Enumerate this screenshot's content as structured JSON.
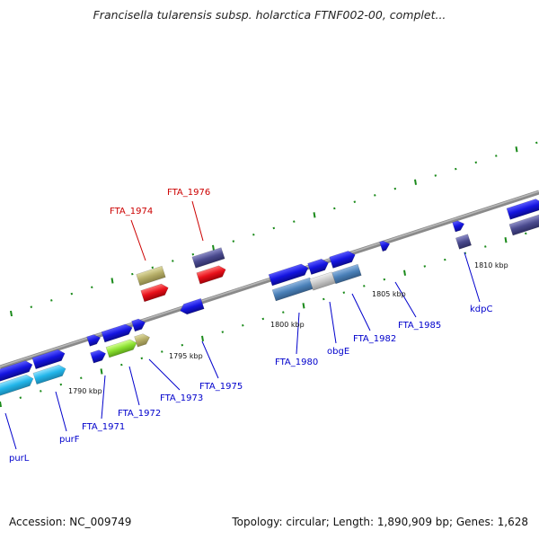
{
  "header": {
    "title": "Francisella tularensis subsp. holarctica FTNF002-00, complet..."
  },
  "footer": {
    "accession": "Accession: NC_009749",
    "summary": "Topology: circular; Length: 1,890,909 bp; Genes: 1,628"
  },
  "map": {
    "scale_labels": [
      "1790 kbp",
      "1795 kbp",
      "1800 kbp",
      "1805 kbp",
      "1810 kbp"
    ],
    "gene_labels": [
      {
        "id": "purL",
        "text": "purL",
        "color": "#0000cc"
      },
      {
        "id": "purF",
        "text": "purF",
        "color": "#0000cc"
      },
      {
        "id": "FTA_1971",
        "text": "FTA_1971",
        "color": "#0000cc"
      },
      {
        "id": "FTA_1972",
        "text": "FTA_1972",
        "color": "#0000cc"
      },
      {
        "id": "FTA_1973",
        "text": "FTA_1973",
        "color": "#0000cc"
      },
      {
        "id": "FTA_1974",
        "text": "FTA_1974",
        "color": "#cc0000"
      },
      {
        "id": "FTA_1975",
        "text": "FTA_1975",
        "color": "#0000cc"
      },
      {
        "id": "FTA_1976",
        "text": "FTA_1976",
        "color": "#cc0000"
      },
      {
        "id": "FTA_1980",
        "text": "FTA_1980",
        "color": "#0000cc"
      },
      {
        "id": "obgE",
        "text": "obgE",
        "color": "#0000cc"
      },
      {
        "id": "FTA_1982",
        "text": "FTA_1982",
        "color": "#0000cc"
      },
      {
        "id": "FTA_1985",
        "text": "FTA_1985",
        "color": "#0000cc"
      },
      {
        "id": "kdpC",
        "text": "kdpC",
        "color": "#0000cc"
      }
    ],
    "feature_colors": {
      "cds_blue": "#1a1ae6",
      "cyan": "#27b8e8",
      "steelblue": "#4a7fb8",
      "tan": "#b5ae6a",
      "red": "#e0101a",
      "slate": "#4a4a8e",
      "lime": "#88e030",
      "gray": "#c4c4c4",
      "backbone": "#8a8a8a",
      "ticks": "#1a8a1a"
    }
  }
}
